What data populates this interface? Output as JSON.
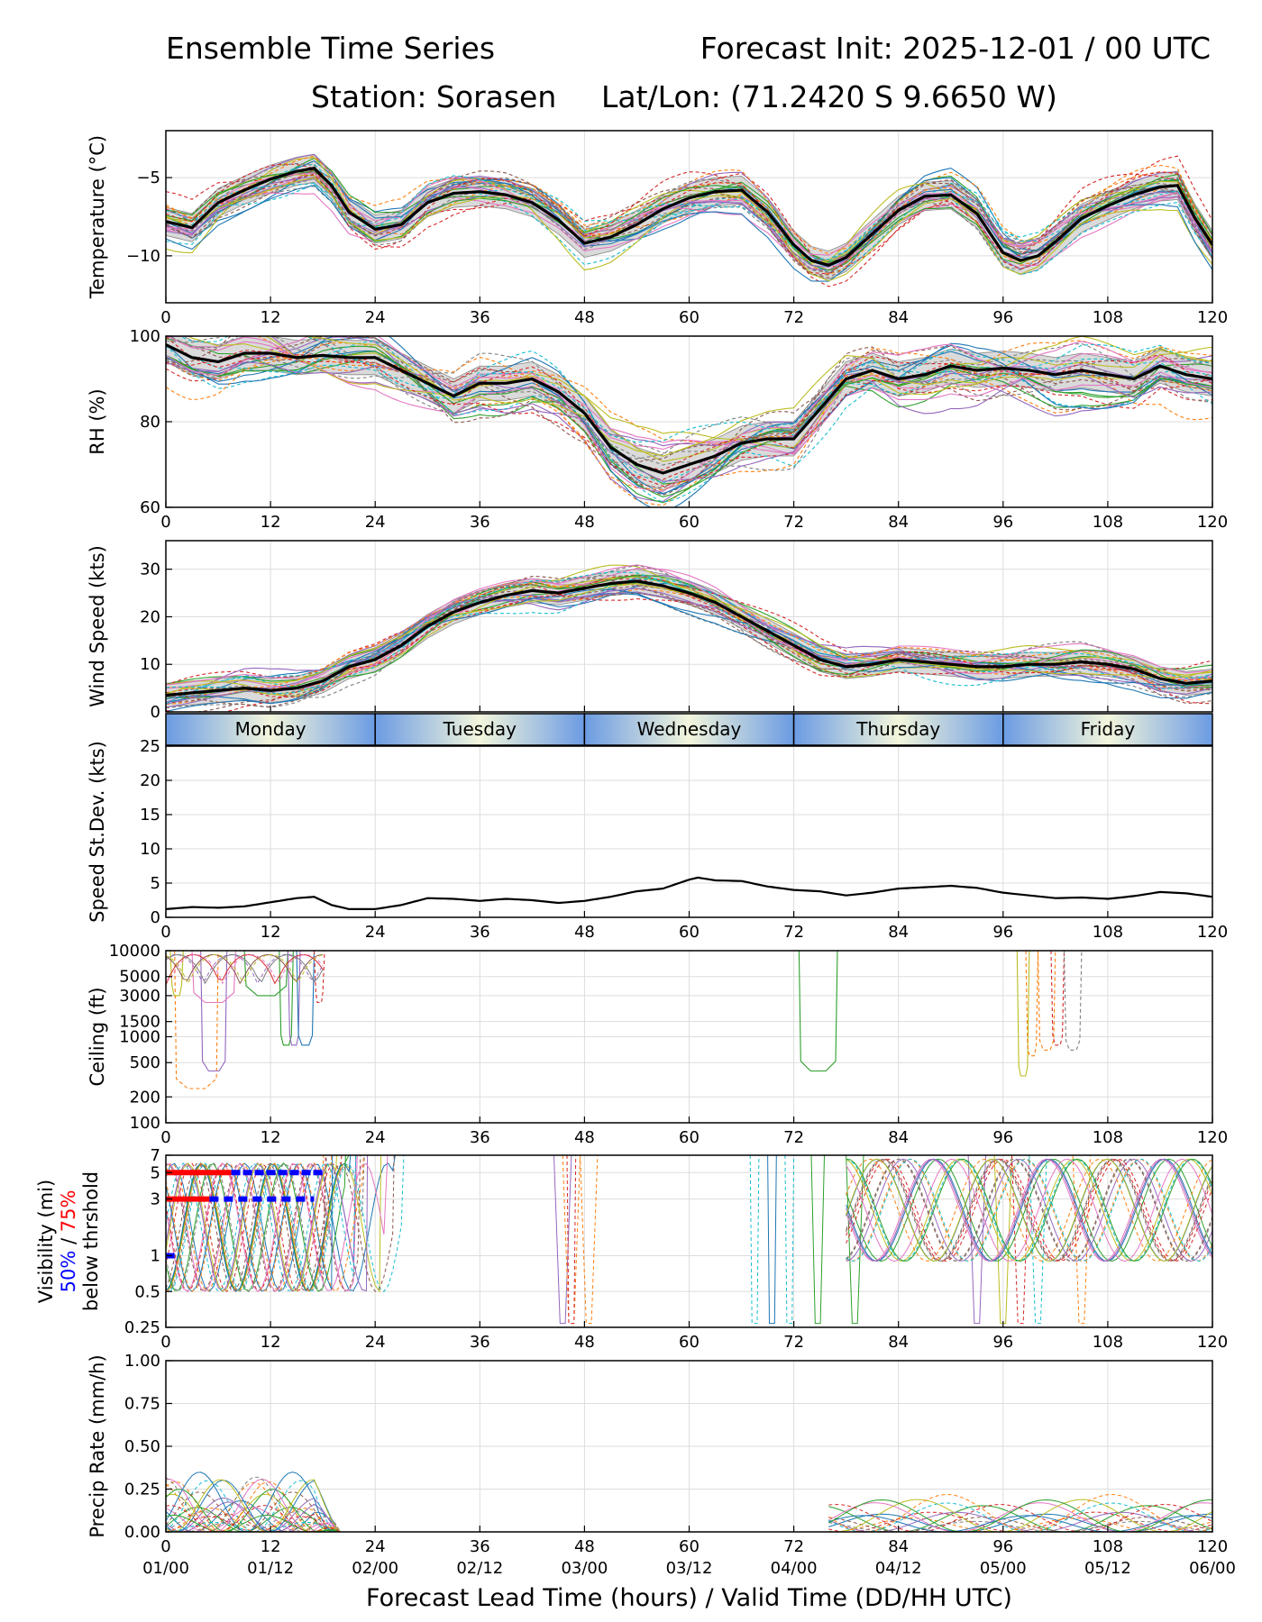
{
  "title_left": "Ensemble Time Series",
  "title_right": "Forecast Init: 2025-12-01 / 00 UTC",
  "title_station": "Station: Sorasen",
  "title_latlon": "Lat/Lon: (71.2420 S 9.6650 W)",
  "chart_data": {
    "type": "line",
    "x_range": [
      0,
      120
    ],
    "x_ticks": [
      0,
      12,
      24,
      36,
      48,
      60,
      72,
      84,
      96,
      108,
      120
    ],
    "x_tick_labels": [
      "0",
      "12",
      "24",
      "36",
      "48",
      "60",
      "72",
      "84",
      "96",
      "108",
      "120"
    ],
    "valid_time_labels": [
      "01/00",
      "01/12",
      "02/00",
      "02/12",
      "03/00",
      "03/12",
      "04/00",
      "04/12",
      "05/00",
      "05/12",
      "06/00"
    ],
    "xlabel": "Forecast Lead Time (hours) / Valid Time (DD/HH UTC)",
    "day_band": [
      "Monday",
      "Tuesday",
      "Wednesday",
      "Thursday",
      "Friday"
    ],
    "panels": [
      {
        "id": "temperature",
        "ylabel": "Temperature (°C)",
        "ylim": [
          -13,
          -2
        ],
        "yticks": [
          -10,
          -5
        ],
        "ytick_labels": [
          "−10",
          "−5"
        ],
        "mean_series": {
          "x": [
            0,
            3,
            6,
            9,
            12,
            15,
            17,
            19,
            21,
            24,
            27,
            30,
            33,
            36,
            39,
            42,
            45,
            48,
            51,
            54,
            57,
            60,
            63,
            66,
            69,
            72,
            74,
            76,
            78,
            81,
            84,
            87,
            90,
            93,
            96,
            98,
            100,
            102,
            105,
            108,
            111,
            114,
            116,
            118,
            120
          ],
          "y": [
            -7.8,
            -8.2,
            -6.6,
            -5.8,
            -5.1,
            -4.6,
            -4.4,
            -5.5,
            -7.2,
            -8.3,
            -8.0,
            -6.6,
            -6.0,
            -5.9,
            -6.1,
            -6.6,
            -7.7,
            -9.2,
            -8.8,
            -8.0,
            -7.0,
            -6.3,
            -5.9,
            -5.8,
            -7.2,
            -9.3,
            -10.3,
            -10.6,
            -10.1,
            -8.6,
            -7.1,
            -6.2,
            -6.1,
            -7.3,
            -9.8,
            -10.3,
            -10.0,
            -9.1,
            -7.6,
            -6.8,
            -6.1,
            -5.6,
            -5.5,
            -7.6,
            -9.3
          ]
        },
        "spread_width": 0.9,
        "member_spread": 1.1,
        "members": 30
      },
      {
        "id": "rh",
        "ylabel": "RH (%)",
        "ylim": [
          60,
          100
        ],
        "yticks": [
          60,
          80,
          100
        ],
        "ytick_labels": [
          "60",
          "80",
          "100"
        ],
        "mean_series": {
          "x": [
            0,
            3,
            6,
            9,
            12,
            15,
            18,
            21,
            24,
            27,
            30,
            33,
            36,
            39,
            42,
            45,
            48,
            51,
            54,
            57,
            60,
            63,
            66,
            69,
            72,
            75,
            78,
            81,
            84,
            87,
            90,
            93,
            96,
            99,
            102,
            105,
            108,
            111,
            114,
            117,
            120
          ],
          "y": [
            98,
            95,
            94,
            96,
            96,
            95,
            95.5,
            95,
            95,
            92,
            89,
            86,
            89,
            89,
            90,
            87,
            82,
            74,
            70,
            68,
            70,
            72,
            75,
            76,
            76,
            83,
            90,
            92,
            90,
            91,
            93,
            92,
            92.5,
            92,
            91,
            92,
            91,
            90,
            93,
            91,
            90
          ]
        },
        "spread_width": 4,
        "member_spread": 6,
        "members": 30
      },
      {
        "id": "wind",
        "ylabel": "Wind Speed (kts)",
        "ylim": [
          0,
          36
        ],
        "yticks": [
          0,
          10,
          20,
          30
        ],
        "ytick_labels": [
          "0",
          "10",
          "20",
          "30"
        ],
        "mean_series": {
          "x": [
            0,
            3,
            6,
            9,
            12,
            15,
            18,
            21,
            24,
            27,
            30,
            33,
            36,
            39,
            42,
            45,
            48,
            51,
            54,
            57,
            60,
            63,
            66,
            69,
            72,
            75,
            78,
            81,
            84,
            87,
            90,
            93,
            96,
            99,
            102,
            105,
            108,
            111,
            114,
            117,
            120
          ],
          "y": [
            3.5,
            4,
            4.5,
            5,
            4.5,
            5,
            6.5,
            9.5,
            11,
            14,
            18,
            21,
            23,
            24.5,
            25.5,
            25,
            26,
            27,
            27.5,
            26.5,
            25,
            23,
            20,
            17,
            14,
            11,
            9.5,
            10,
            11,
            10.5,
            10,
            9.5,
            9.5,
            10,
            10,
            10.5,
            10,
            9,
            7,
            6,
            6.5
          ]
        },
        "spread_width": 2.5,
        "member_spread": 2.8,
        "members": 30
      },
      {
        "id": "speed_stdev",
        "ylabel": "Speed St.Dev. (kts)",
        "ylim": [
          0,
          25
        ],
        "yticks": [
          0,
          5,
          10,
          15,
          20,
          25
        ],
        "ytick_labels": [
          "0",
          "5",
          "10",
          "15",
          "20",
          "25"
        ],
        "series": {
          "x": [
            0,
            3,
            6,
            9,
            12,
            15,
            17,
            19,
            21,
            24,
            27,
            30,
            33,
            36,
            39,
            42,
            45,
            48,
            51,
            54,
            57,
            60,
            61,
            63,
            66,
            69,
            72,
            75,
            78,
            81,
            84,
            87,
            90,
            93,
            96,
            99,
            102,
            105,
            108,
            111,
            114,
            117,
            120
          ],
          "y": [
            1.2,
            1.5,
            1.4,
            1.6,
            2.2,
            2.8,
            3.0,
            1.8,
            1.2,
            1.2,
            1.8,
            2.8,
            2.7,
            2.4,
            2.7,
            2.5,
            2.1,
            2.4,
            3.0,
            3.8,
            4.2,
            5.5,
            5.8,
            5.4,
            5.3,
            4.5,
            4.0,
            3.8,
            3.2,
            3.6,
            4.2,
            4.4,
            4.6,
            4.3,
            3.6,
            3.2,
            2.8,
            2.9,
            2.7,
            3.1,
            3.7,
            3.5,
            3.0
          ]
        }
      },
      {
        "id": "ceiling",
        "ylabel": "Ceiling (ft)",
        "scale": "log",
        "ylim": [
          100,
          10000
        ],
        "yticks": [
          100,
          200,
          500,
          1000,
          1500,
          3000,
          5000,
          10000
        ],
        "ytick_labels": [
          "100",
          "200",
          "500",
          "1000",
          "1500",
          "3000",
          "5000",
          "10000"
        ]
      },
      {
        "id": "visibility",
        "ylabel_lines": [
          "Visibility (mi)",
          "50% / 75%",
          "below thrshold"
        ],
        "label_50": "50%",
        "label_sep": " / ",
        "label_75": "75%",
        "scale": "log",
        "ylim": [
          0.25,
          7
        ],
        "yticks": [
          0.25,
          0.5,
          1,
          3,
          5,
          7
        ],
        "ytick_labels": [
          "0.25",
          "0.5",
          "1",
          "3",
          "5",
          "7"
        ]
      },
      {
        "id": "precip",
        "ylabel": "Precip Rate (mm/h)",
        "ylim": [
          0,
          1
        ],
        "yticks": [
          0,
          0.25,
          0.5,
          0.75,
          1.0
        ],
        "ytick_labels": [
          "0.00",
          "0.25",
          "0.50",
          "0.75",
          "1.00"
        ]
      }
    ]
  },
  "colors": {
    "members": [
      "#1f77b4",
      "#ff7f0e",
      "#2ca02c",
      "#d62728",
      "#9467bd",
      "#8c564b",
      "#e377c2",
      "#7f7f7f",
      "#bcbd22",
      "#17becf"
    ],
    "mean": "#000000",
    "spread": "#bbbbbb",
    "grid": "#dddddd",
    "threshold_50": "#0000ff",
    "threshold_75": "#ff0000",
    "day_edge": "#6b9be3",
    "day_center": "#f3f6dc"
  }
}
